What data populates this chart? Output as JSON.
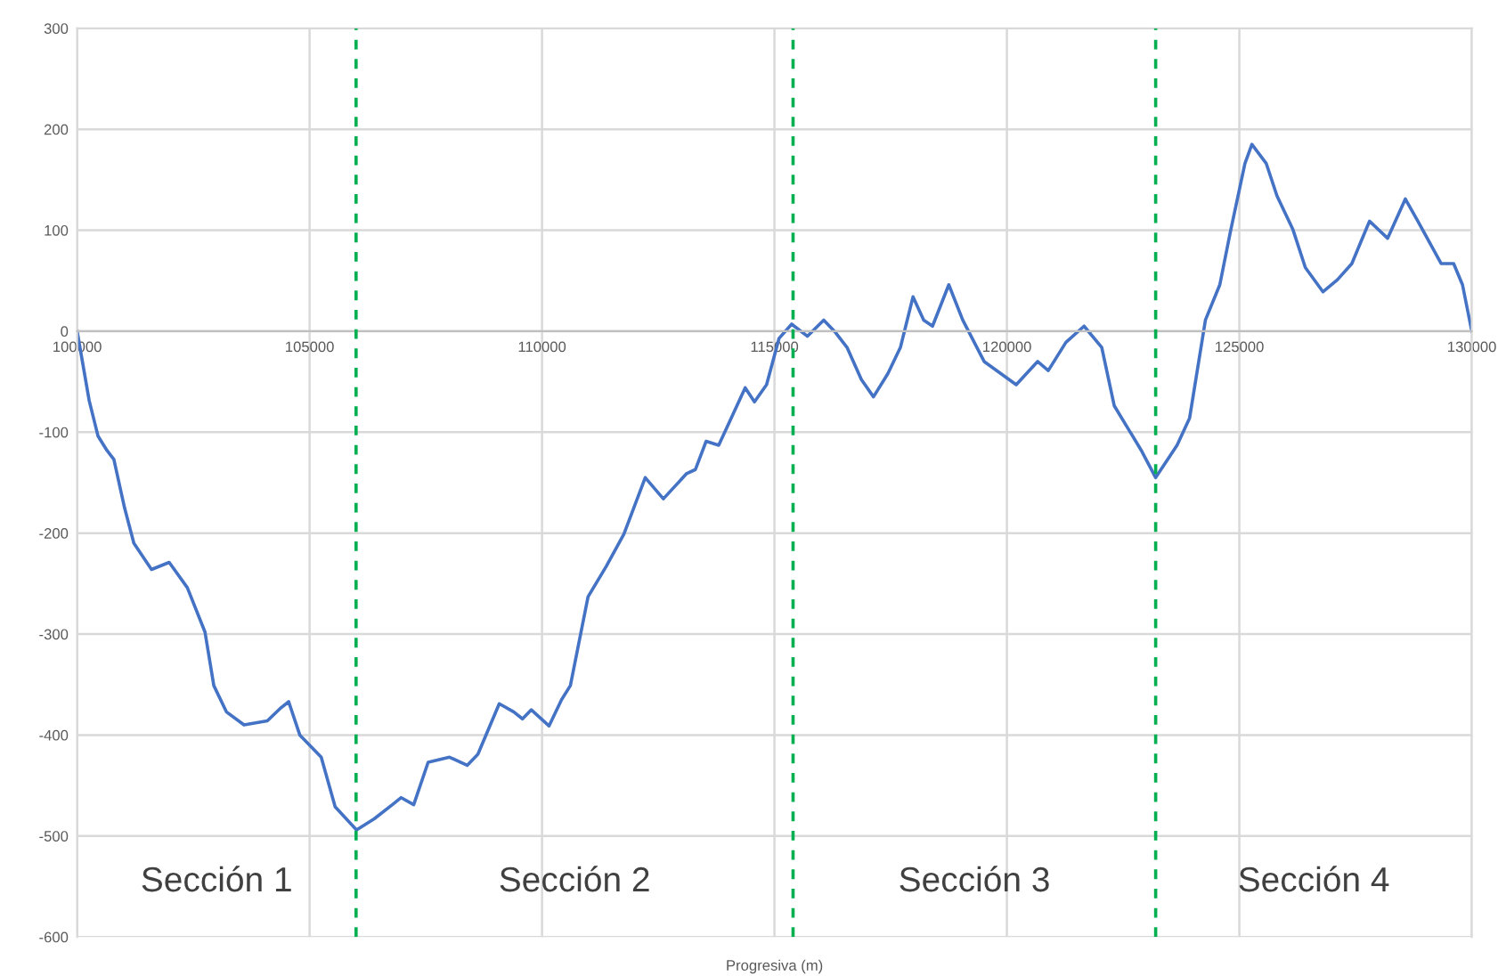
{
  "chart_data": {
    "type": "line",
    "xlabel": "Progresiva (m)",
    "x": [
      100000,
      100260,
      100450,
      100640,
      100790,
      101020,
      101220,
      101600,
      101980,
      102370,
      102750,
      102940,
      103210,
      103590,
      104090,
      104360,
      104550,
      104790,
      105250,
      105550,
      106010,
      106390,
      106780,
      106970,
      107240,
      107550,
      108010,
      108390,
      108620,
      109080,
      109390,
      109580,
      109770,
      110150,
      110420,
      110610,
      110990,
      111380,
      111760,
      112220,
      112610,
      113110,
      113300,
      113530,
      113800,
      114070,
      114370,
      114570,
      114830,
      115100,
      115370,
      115710,
      116060,
      116290,
      116560,
      116870,
      117130,
      117440,
      117710,
      117980,
      118210,
      118400,
      118750,
      119050,
      119510,
      120200,
      120660,
      120890,
      121270,
      121660,
      122040,
      122310,
      122890,
      123200,
      123660,
      123930,
      124270,
      124580,
      124810,
      125120,
      125270,
      125580,
      125810,
      126150,
      126420,
      126800,
      127110,
      127420,
      127800,
      128190,
      128570,
      128840,
      129340,
      129610,
      129800,
      130000
    ],
    "series": [
      {
        "color": "#4472c4",
        "values": [
          0,
          -69,
          -104,
          -118,
          -127,
          -175,
          -210,
          -236,
          -229,
          -254,
          -298,
          -351,
          -377,
          -390,
          -386,
          -374,
          -367,
          -400,
          -422,
          -471,
          -494,
          -483,
          -469,
          -462,
          -469,
          -427,
          -422,
          -430,
          -419,
          -369,
          -377,
          -384,
          -375,
          -391,
          -365,
          -351,
          -263,
          -233,
          -201,
          -145,
          -166,
          -141,
          -137,
          -109,
          -113,
          -86,
          -56,
          -70,
          -53,
          -7,
          7,
          -5,
          11,
          0,
          -16,
          -48,
          -65,
          -42,
          -16,
          34,
          11,
          5,
          46,
          11,
          -30,
          -53,
          -30,
          -39,
          -11,
          5,
          -16,
          -74,
          -118,
          -145,
          -113,
          -86,
          11,
          46,
          99,
          166,
          185,
          166,
          134,
          101,
          63,
          39,
          51,
          67,
          109,
          92,
          131,
          109,
          67,
          67,
          46,
          0
        ]
      }
    ],
    "xlim": [
      100000,
      130000
    ],
    "xticks": [
      100000,
      105000,
      110000,
      115000,
      120000,
      125000,
      130000
    ],
    "ylim": [
      -600,
      300
    ],
    "yticks": [
      300,
      200,
      100,
      0,
      -100,
      -200,
      -300,
      -400,
      -500,
      -600
    ],
    "grid": true,
    "marker": "none",
    "line_style": "solid",
    "legend": false,
    "ref_lines": [
      {
        "axis": "x",
        "value": 106000,
        "color": "#00b050",
        "line_style": "dashed"
      },
      {
        "axis": "x",
        "value": 115400,
        "color": "#00b050",
        "line_style": "dashed"
      },
      {
        "axis": "x",
        "value": 123200,
        "color": "#00b050",
        "line_style": "dashed"
      }
    ],
    "annotations": [
      "Sección 1",
      "Sección 2",
      "Sección 3",
      "Sección 4"
    ]
  }
}
